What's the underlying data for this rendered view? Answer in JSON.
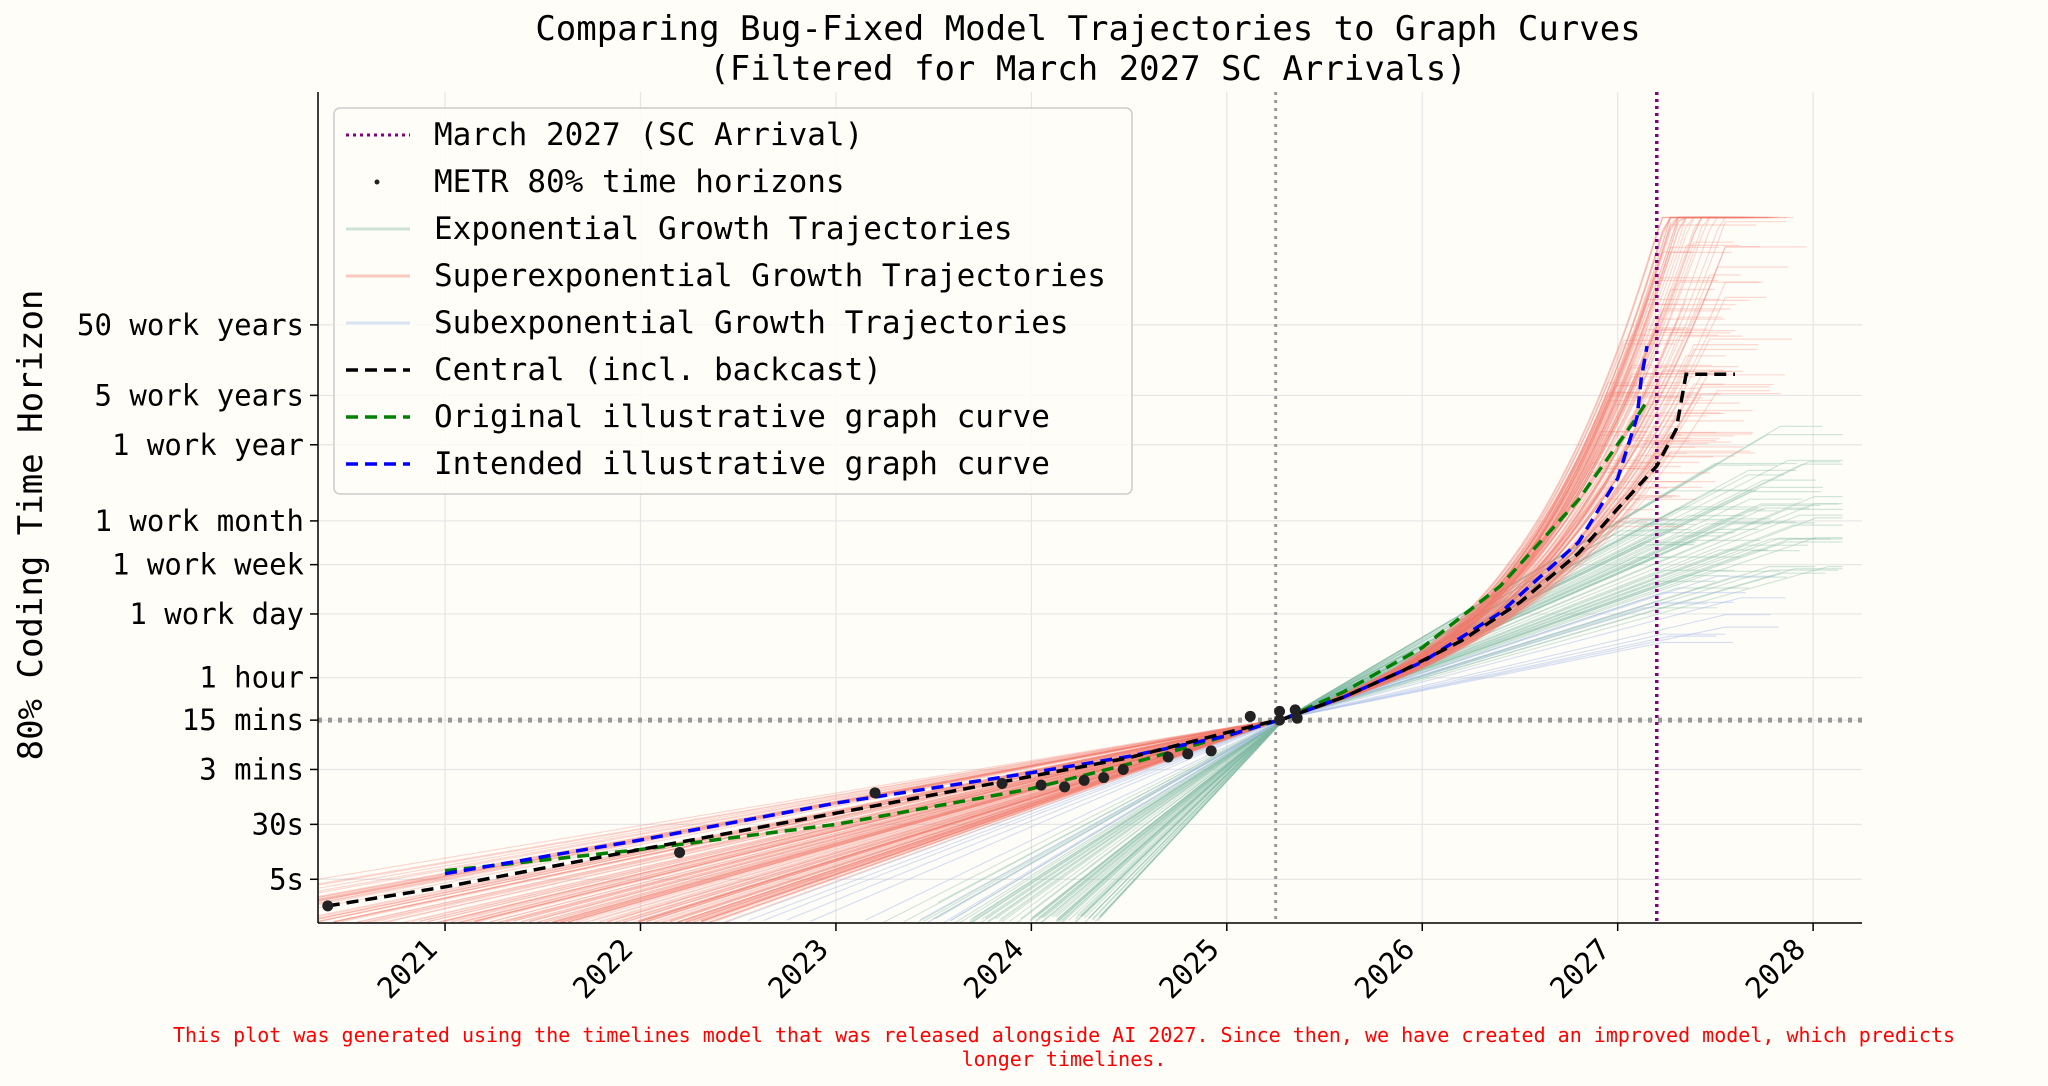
{
  "chart_data": {
    "type": "line",
    "title": "Comparing Bug-Fixed Model Trajectories to Graph Curves",
    "subtitle": "(Filtered for March 2027 SC Arrivals)",
    "xlabel": "",
    "ylabel": "80% Coding Time Horizon",
    "x_ticks": [
      "2021",
      "2022",
      "2023",
      "2024",
      "2025",
      "2026",
      "2027",
      "2028"
    ],
    "x_range": [
      2020.35,
      2028.25
    ],
    "y_scale": "log",
    "y_unit": "minutes",
    "y_range_minutes": [
      0.02,
      12000000000.0
    ],
    "y_ticks": [
      {
        "label": "5s",
        "minutes": 0.0833
      },
      {
        "label": "30s",
        "minutes": 0.5
      },
      {
        "label": "3 mins",
        "minutes": 3
      },
      {
        "label": "15 mins",
        "minutes": 15
      },
      {
        "label": "1 hour",
        "minutes": 60
      },
      {
        "label": "1 work day",
        "minutes": 480
      },
      {
        "label": "1 work week",
        "minutes": 2400
      },
      {
        "label": "1 work month",
        "minutes": 10000
      },
      {
        "label": "1 work year",
        "minutes": 120000
      },
      {
        "label": "5 work years",
        "minutes": 600000
      },
      {
        "label": "50 work years",
        "minutes": 6000000
      }
    ],
    "reference_lines": {
      "vertical_grey_year": 2025.25,
      "horizontal_grey_minutes": 15,
      "sc_arrival_year": 2027.2
    },
    "series": [
      {
        "name": "March 2027 (SC Arrival)",
        "style": "dotted",
        "color": "#800080",
        "x": [
          2027.2,
          2027.2
        ]
      },
      {
        "name": "METR 80% time horizons",
        "style": "points",
        "color": "#222222",
        "points": [
          [
            2020.4,
            0.035
          ],
          [
            2022.2,
            0.2
          ],
          [
            2023.2,
            1.4
          ],
          [
            2023.85,
            1.9
          ],
          [
            2024.05,
            1.8
          ],
          [
            2024.17,
            1.7
          ],
          [
            2024.27,
            2.1
          ],
          [
            2024.37,
            2.3
          ],
          [
            2024.47,
            3.0
          ],
          [
            2024.7,
            4.5
          ],
          [
            2024.8,
            5.0
          ],
          [
            2024.92,
            5.5
          ],
          [
            2025.12,
            17
          ],
          [
            2025.27,
            20
          ],
          [
            2025.27,
            15
          ],
          [
            2025.35,
            21
          ],
          [
            2025.36,
            16
          ]
        ]
      },
      {
        "name": "Exponential Growth Trajectories",
        "style": "band",
        "color": "#7fb8a3"
      },
      {
        "name": "Superexponential Growth Trajectories",
        "style": "band",
        "color": "#f07a6a"
      },
      {
        "name": "Subexponential Growth Trajectories",
        "style": "band",
        "color": "#a3bbe8"
      },
      {
        "name": "Central (incl. backcast)",
        "style": "dashed",
        "color": "#000000",
        "points": [
          [
            2020.4,
            0.035
          ],
          [
            2021.0,
            0.065
          ],
          [
            2022.0,
            0.22
          ],
          [
            2023.0,
            0.72
          ],
          [
            2024.0,
            2.4
          ],
          [
            2024.5,
            4.4
          ],
          [
            2025.0,
            10
          ],
          [
            2025.3,
            16
          ],
          [
            2025.6,
            32
          ],
          [
            2025.9,
            75
          ],
          [
            2026.2,
            200
          ],
          [
            2026.5,
            700
          ],
          [
            2026.8,
            3500
          ],
          [
            2027.0,
            15000
          ],
          [
            2027.2,
            60000
          ],
          [
            2027.3,
            200000
          ],
          [
            2027.35,
            1200000
          ],
          [
            2027.6,
            1200000
          ]
        ]
      },
      {
        "name": "Original illustrative graph curve",
        "style": "dashed",
        "color": "#008000",
        "points": [
          [
            2021.0,
            0.11
          ],
          [
            2022.0,
            0.22
          ],
          [
            2023.0,
            0.5
          ],
          [
            2024.0,
            1.6
          ],
          [
            2024.5,
            3.6
          ],
          [
            2025.0,
            9
          ],
          [
            2025.3,
            16
          ],
          [
            2025.6,
            38
          ],
          [
            2026.0,
            160
          ],
          [
            2026.4,
            1200
          ],
          [
            2026.8,
            20000
          ],
          [
            2027.1,
            300000
          ],
          [
            2027.15,
            500000
          ]
        ]
      },
      {
        "name": "Intended illustrative graph curve",
        "style": "dashed",
        "color": "#0000ff",
        "points": [
          [
            2021.0,
            0.1
          ],
          [
            2022.0,
            0.3
          ],
          [
            2023.0,
            1.0
          ],
          [
            2024.0,
            2.7
          ],
          [
            2024.5,
            4.6
          ],
          [
            2025.0,
            9
          ],
          [
            2025.3,
            16
          ],
          [
            2025.6,
            32
          ],
          [
            2026.0,
            100
          ],
          [
            2026.4,
            500
          ],
          [
            2026.8,
            5000
          ],
          [
            2027.0,
            40000
          ],
          [
            2027.1,
            300000
          ],
          [
            2027.12,
            1000000
          ],
          [
            2027.15,
            3000000
          ]
        ]
      }
    ],
    "legend_position": "upper-left",
    "footnote": "This plot was generated using the timelines model that was released alongside AI 2027. Since then, we have created an improved model, which predicts longer timelines."
  }
}
